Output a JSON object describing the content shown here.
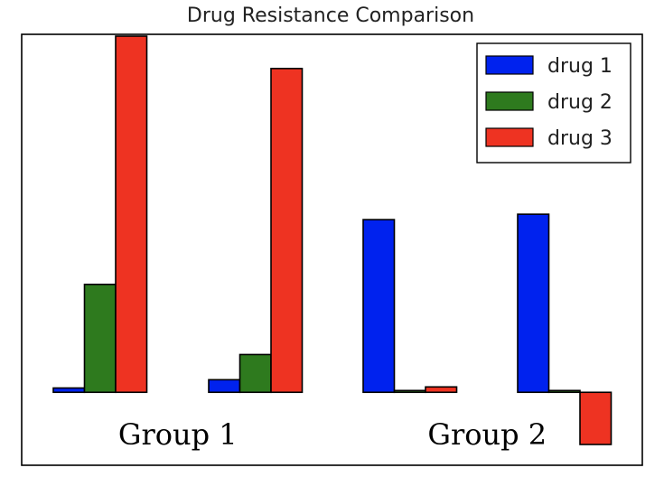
{
  "chart_data": {
    "type": "bar",
    "title": "Drug Resistance Comparison",
    "categories": [
      "",
      "",
      "",
      ""
    ],
    "groups": [
      {
        "label": "Group 1",
        "categories": [
          0,
          1
        ]
      },
      {
        "label": "Group 2",
        "categories": [
          2,
          3
        ]
      }
    ],
    "series": [
      {
        "name": "drug 1",
        "color": "#0022ee",
        "values": [
          0.12,
          0.35,
          4.8,
          4.95
        ]
      },
      {
        "name": "drug 2",
        "color": "#2e7a1e",
        "values": [
          3.0,
          1.05,
          0.05,
          0.05
        ]
      },
      {
        "name": "drug 3",
        "color": "#ee3322",
        "values": [
          9.9,
          9.0,
          0.15,
          -1.45
        ]
      }
    ],
    "ylim": [
      -1.45,
      9.95
    ],
    "xlabel": "",
    "ylabel": "",
    "grid": false,
    "legend": "top-right"
  }
}
